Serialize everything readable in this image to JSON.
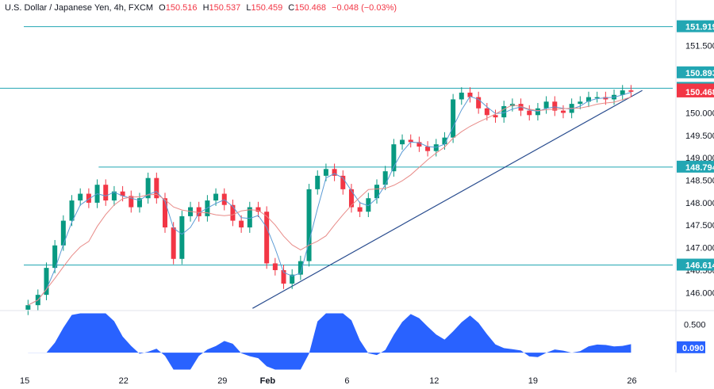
{
  "header": {
    "symbol": "U.S. Dollar / Japanese Yen, 4h, FXCM",
    "open_label": "O",
    "open": "150.516",
    "high_label": "H",
    "high": "150.537",
    "low_label": "L",
    "low": "150.459",
    "close_label": "C",
    "close": "150.468",
    "change": "−0.048 (−0.03%)"
  },
  "colors": {
    "up": "#089981",
    "down": "#f23645",
    "fast_ma": "#5b9bd5",
    "slow_ma": "#e88b88",
    "level_line": "#22a6b3",
    "trend_line": "#2a4d8f",
    "osc_fill": "#2962ff",
    "axis_text": "#131722"
  },
  "chart_data": {
    "type": "candlestick",
    "y_range": [
      145.6,
      152.3
    ],
    "y_ticks": [
      "146.000",
      "146.500",
      "147.000",
      "147.500",
      "148.000",
      "148.500",
      "149.000",
      "149.500",
      "150.000",
      "151.500"
    ],
    "x_ticks": [
      "15",
      "22",
      "29",
      "Feb",
      "6",
      "12",
      "19",
      "26"
    ],
    "price_labels": [
      {
        "text": "151.919",
        "value": 151.919,
        "style": "level"
      },
      {
        "text": "150.893",
        "value": 150.893,
        "style": "level"
      },
      {
        "text": "150.547",
        "value": 150.547,
        "style": "level"
      },
      {
        "text": "150.510",
        "value": 150.51,
        "style": "red"
      },
      {
        "text": "150.468",
        "value": 150.468,
        "style": "red"
      },
      {
        "text": "148.794",
        "value": 148.794,
        "style": "level"
      },
      {
        "text": "146.614",
        "value": 146.614,
        "style": "level"
      }
    ],
    "horizontal_levels": [
      {
        "name": "level-151919",
        "value": 151.919,
        "from_day": 15.0,
        "to_day": 28.8
      },
      {
        "name": "level-150547",
        "value": 150.547,
        "from_day": 13.3,
        "to_day": 28.8
      },
      {
        "name": "level-148794",
        "value": 148.794,
        "from_day": 20.3,
        "to_day": 28.8
      },
      {
        "name": "level-146614",
        "value": 146.614,
        "from_day": 15.0,
        "to_day": 28.8
      }
    ],
    "trendline": {
      "from": {
        "day": 31.2,
        "value": 145.65
      },
      "to": {
        "day": 58.8,
        "value": 150.5
      }
    },
    "oscillator": {
      "ticks": [
        "0.500"
      ],
      "last": "0.090",
      "range": [
        -0.35,
        0.75
      ]
    },
    "series_close": [
      {
        "d": 15.3,
        "c": 145.72
      },
      {
        "d": 16.0,
        "c": 145.95
      },
      {
        "d": 16.6,
        "c": 146.55
      },
      {
        "d": 17.2,
        "c": 147.05
      },
      {
        "d": 17.8,
        "c": 147.6
      },
      {
        "d": 18.4,
        "c": 148.05
      },
      {
        "d": 19.0,
        "c": 148.2
      },
      {
        "d": 19.6,
        "c": 148.0
      },
      {
        "d": 20.2,
        "c": 148.4
      },
      {
        "d": 20.8,
        "c": 148.05
      },
      {
        "d": 21.4,
        "c": 148.25
      },
      {
        "d": 22.0,
        "c": 148.15
      },
      {
        "d": 22.6,
        "c": 147.9
      },
      {
        "d": 23.2,
        "c": 148.1
      },
      {
        "d": 23.8,
        "c": 148.55
      },
      {
        "d": 24.4,
        "c": 148.1
      },
      {
        "d": 25.0,
        "c": 147.45
      },
      {
        "d": 25.6,
        "c": 146.75
      },
      {
        "d": 26.2,
        "c": 147.7
      },
      {
        "d": 26.8,
        "c": 147.9
      },
      {
        "d": 27.4,
        "c": 147.7
      },
      {
        "d": 28.0,
        "c": 148.05
      },
      {
        "d": 28.6,
        "c": 148.2
      },
      {
        "d": 29.2,
        "c": 147.95
      },
      {
        "d": 29.8,
        "c": 147.6
      },
      {
        "d": 30.4,
        "c": 147.45
      },
      {
        "d": 31.0,
        "c": 147.9
      },
      {
        "d": 31.6,
        "c": 147.8
      },
      {
        "d": 32.2,
        "c": 146.65
      },
      {
        "d": 32.8,
        "c": 146.5
      },
      {
        "d": 33.4,
        "c": 146.2
      },
      {
        "d": 34.0,
        "c": 146.4
      },
      {
        "d": 34.6,
        "c": 146.7
      },
      {
        "d": 35.2,
        "c": 148.3
      },
      {
        "d": 35.8,
        "c": 148.6
      },
      {
        "d": 36.4,
        "c": 148.75
      },
      {
        "d": 37.0,
        "c": 148.6
      },
      {
        "d": 37.6,
        "c": 148.3
      },
      {
        "d": 38.2,
        "c": 147.9
      },
      {
        "d": 38.8,
        "c": 147.8
      },
      {
        "d": 39.4,
        "c": 148.1
      },
      {
        "d": 40.0,
        "c": 148.4
      },
      {
        "d": 40.6,
        "c": 148.7
      },
      {
        "d": 41.2,
        "c": 149.3
      },
      {
        "d": 41.8,
        "c": 149.4
      },
      {
        "d": 42.4,
        "c": 149.35
      },
      {
        "d": 43.0,
        "c": 149.25
      },
      {
        "d": 43.6,
        "c": 149.15
      },
      {
        "d": 44.2,
        "c": 149.3
      },
      {
        "d": 44.8,
        "c": 149.45
      },
      {
        "d": 45.4,
        "c": 150.3
      },
      {
        "d": 46.0,
        "c": 150.45
      },
      {
        "d": 46.6,
        "c": 150.35
      },
      {
        "d": 47.2,
        "c": 150.1
      },
      {
        "d": 47.8,
        "c": 149.95
      },
      {
        "d": 48.4,
        "c": 149.9
      },
      {
        "d": 49.0,
        "c": 150.15
      },
      {
        "d": 49.6,
        "c": 150.2
      },
      {
        "d": 50.2,
        "c": 150.05
      },
      {
        "d": 50.8,
        "c": 149.95
      },
      {
        "d": 51.4,
        "c": 150.1
      },
      {
        "d": 52.0,
        "c": 150.25
      },
      {
        "d": 52.6,
        "c": 150.05
      },
      {
        "d": 53.2,
        "c": 150.0
      },
      {
        "d": 53.8,
        "c": 150.2
      },
      {
        "d": 54.4,
        "c": 150.25
      },
      {
        "d": 55.0,
        "c": 150.35
      },
      {
        "d": 55.6,
        "c": 150.35
      },
      {
        "d": 56.2,
        "c": 150.3
      },
      {
        "d": 56.8,
        "c": 150.4
      },
      {
        "d": 57.4,
        "c": 150.5
      },
      {
        "d": 58.0,
        "c": 150.47
      }
    ]
  }
}
